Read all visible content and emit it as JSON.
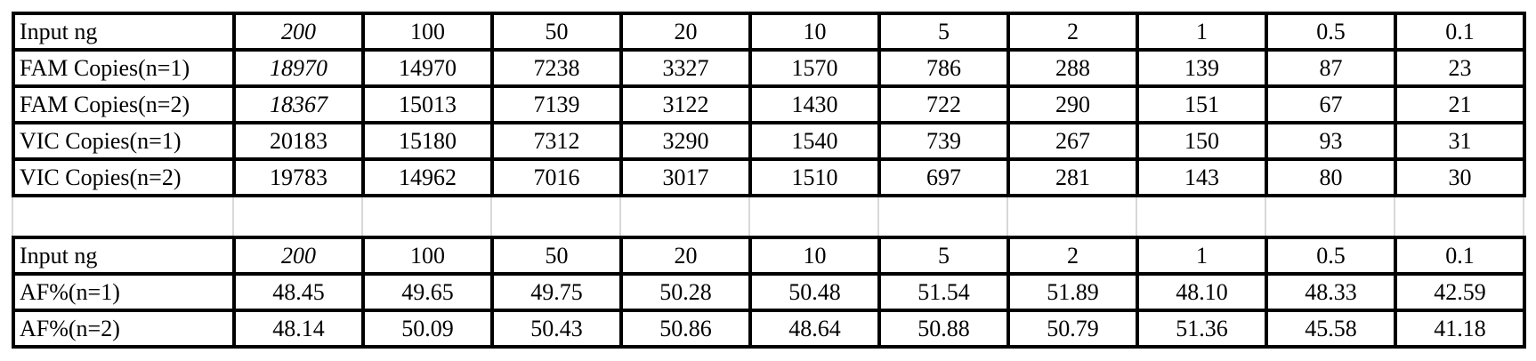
{
  "colors": {
    "text": "#000000",
    "red": "#ff0000",
    "table_border": "#000000",
    "gridline": "#d8d8d8",
    "background": "#ffffff"
  },
  "chart_data": [
    {
      "type": "table",
      "name": "copies-table",
      "row_header_column": "Input ng",
      "input_ng": [
        200,
        100,
        50,
        20,
        10,
        5,
        2,
        1,
        0.5,
        0.1
      ],
      "rows": [
        {
          "label": "Input ng",
          "cells": [
            {
              "v": "200",
              "s": "i"
            },
            {
              "v": "100",
              "s": ""
            },
            {
              "v": "50",
              "s": ""
            },
            {
              "v": "20",
              "s": ""
            },
            {
              "v": "10",
              "s": ""
            },
            {
              "v": "5",
              "s": ""
            },
            {
              "v": "2",
              "s": ""
            },
            {
              "v": "1",
              "s": ""
            },
            {
              "v": "0.5",
              "s": ""
            },
            {
              "v": "0.1",
              "s": ""
            }
          ]
        },
        {
          "label": "FAM Copies(n=1)",
          "cells": [
            {
              "v": "18970",
              "s": "ri"
            },
            {
              "v": "14970",
              "s": ""
            },
            {
              "v": "7238",
              "s": ""
            },
            {
              "v": "3327",
              "s": ""
            },
            {
              "v": "1570",
              "s": ""
            },
            {
              "v": "786",
              "s": ""
            },
            {
              "v": "288",
              "s": ""
            },
            {
              "v": "139",
              "s": ""
            },
            {
              "v": "87",
              "s": ""
            },
            {
              "v": "23",
              "s": ""
            }
          ]
        },
        {
          "label": "FAM Copies(n=2)",
          "cells": [
            {
              "v": "18367",
              "s": "ri"
            },
            {
              "v": "15013",
              "s": ""
            },
            {
              "v": "7139",
              "s": ""
            },
            {
              "v": "3122",
              "s": ""
            },
            {
              "v": "1430",
              "s": ""
            },
            {
              "v": "722",
              "s": ""
            },
            {
              "v": "290",
              "s": ""
            },
            {
              "v": "151",
              "s": ""
            },
            {
              "v": "67",
              "s": ""
            },
            {
              "v": "21",
              "s": ""
            }
          ]
        },
        {
          "label": "VIC Copies(n=1)",
          "cells": [
            {
              "v": "20183",
              "s": "r"
            },
            {
              "v": "15180",
              "s": ""
            },
            {
              "v": "7312",
              "s": ""
            },
            {
              "v": "3290",
              "s": ""
            },
            {
              "v": "1540",
              "s": ""
            },
            {
              "v": "739",
              "s": ""
            },
            {
              "v": "267",
              "s": ""
            },
            {
              "v": "150",
              "s": ""
            },
            {
              "v": "93",
              "s": ""
            },
            {
              "v": "31",
              "s": ""
            }
          ]
        },
        {
          "label": "VIC Copies(n=2)",
          "cells": [
            {
              "v": "19783",
              "s": "r"
            },
            {
              "v": "14962",
              "s": ""
            },
            {
              "v": "7016",
              "s": ""
            },
            {
              "v": "3017",
              "s": ""
            },
            {
              "v": "1510",
              "s": ""
            },
            {
              "v": "697",
              "s": ""
            },
            {
              "v": "281",
              "s": ""
            },
            {
              "v": "143",
              "s": ""
            },
            {
              "v": "80",
              "s": ""
            },
            {
              "v": "30",
              "s": ""
            }
          ]
        }
      ]
    },
    {
      "type": "table",
      "name": "af-table",
      "row_header_column": "Input ng",
      "input_ng": [
        200,
        100,
        50,
        20,
        10,
        5,
        2,
        1,
        0.5,
        0.1
      ],
      "rows": [
        {
          "label": "Input ng",
          "cells": [
            {
              "v": "200",
              "s": "i"
            },
            {
              "v": "100",
              "s": ""
            },
            {
              "v": "50",
              "s": ""
            },
            {
              "v": "20",
              "s": ""
            },
            {
              "v": "10",
              "s": ""
            },
            {
              "v": "5",
              "s": ""
            },
            {
              "v": "2",
              "s": ""
            },
            {
              "v": "1",
              "s": ""
            },
            {
              "v": "0.5",
              "s": ""
            },
            {
              "v": "0.1",
              "s": ""
            }
          ]
        },
        {
          "label": "AF%(n=1)",
          "cells": [
            {
              "v": "48.45",
              "s": ""
            },
            {
              "v": "49.65",
              "s": ""
            },
            {
              "v": "49.75",
              "s": ""
            },
            {
              "v": "50.28",
              "s": ""
            },
            {
              "v": "50.48",
              "s": ""
            },
            {
              "v": "51.54",
              "s": ""
            },
            {
              "v": "51.89",
              "s": ""
            },
            {
              "v": "48.10",
              "s": ""
            },
            {
              "v": "48.33",
              "s": ""
            },
            {
              "v": "42.59",
              "s": "r"
            }
          ]
        },
        {
          "label": "AF%(n=2)",
          "cells": [
            {
              "v": "48.14",
              "s": ""
            },
            {
              "v": "50.09",
              "s": ""
            },
            {
              "v": "50.43",
              "s": ""
            },
            {
              "v": "50.86",
              "s": ""
            },
            {
              "v": "48.64",
              "s": ""
            },
            {
              "v": "50.88",
              "s": ""
            },
            {
              "v": "50.79",
              "s": ""
            },
            {
              "v": "51.36",
              "s": ""
            },
            {
              "v": "45.58",
              "s": ""
            },
            {
              "v": "41.18",
              "s": "r"
            }
          ]
        }
      ]
    }
  ]
}
